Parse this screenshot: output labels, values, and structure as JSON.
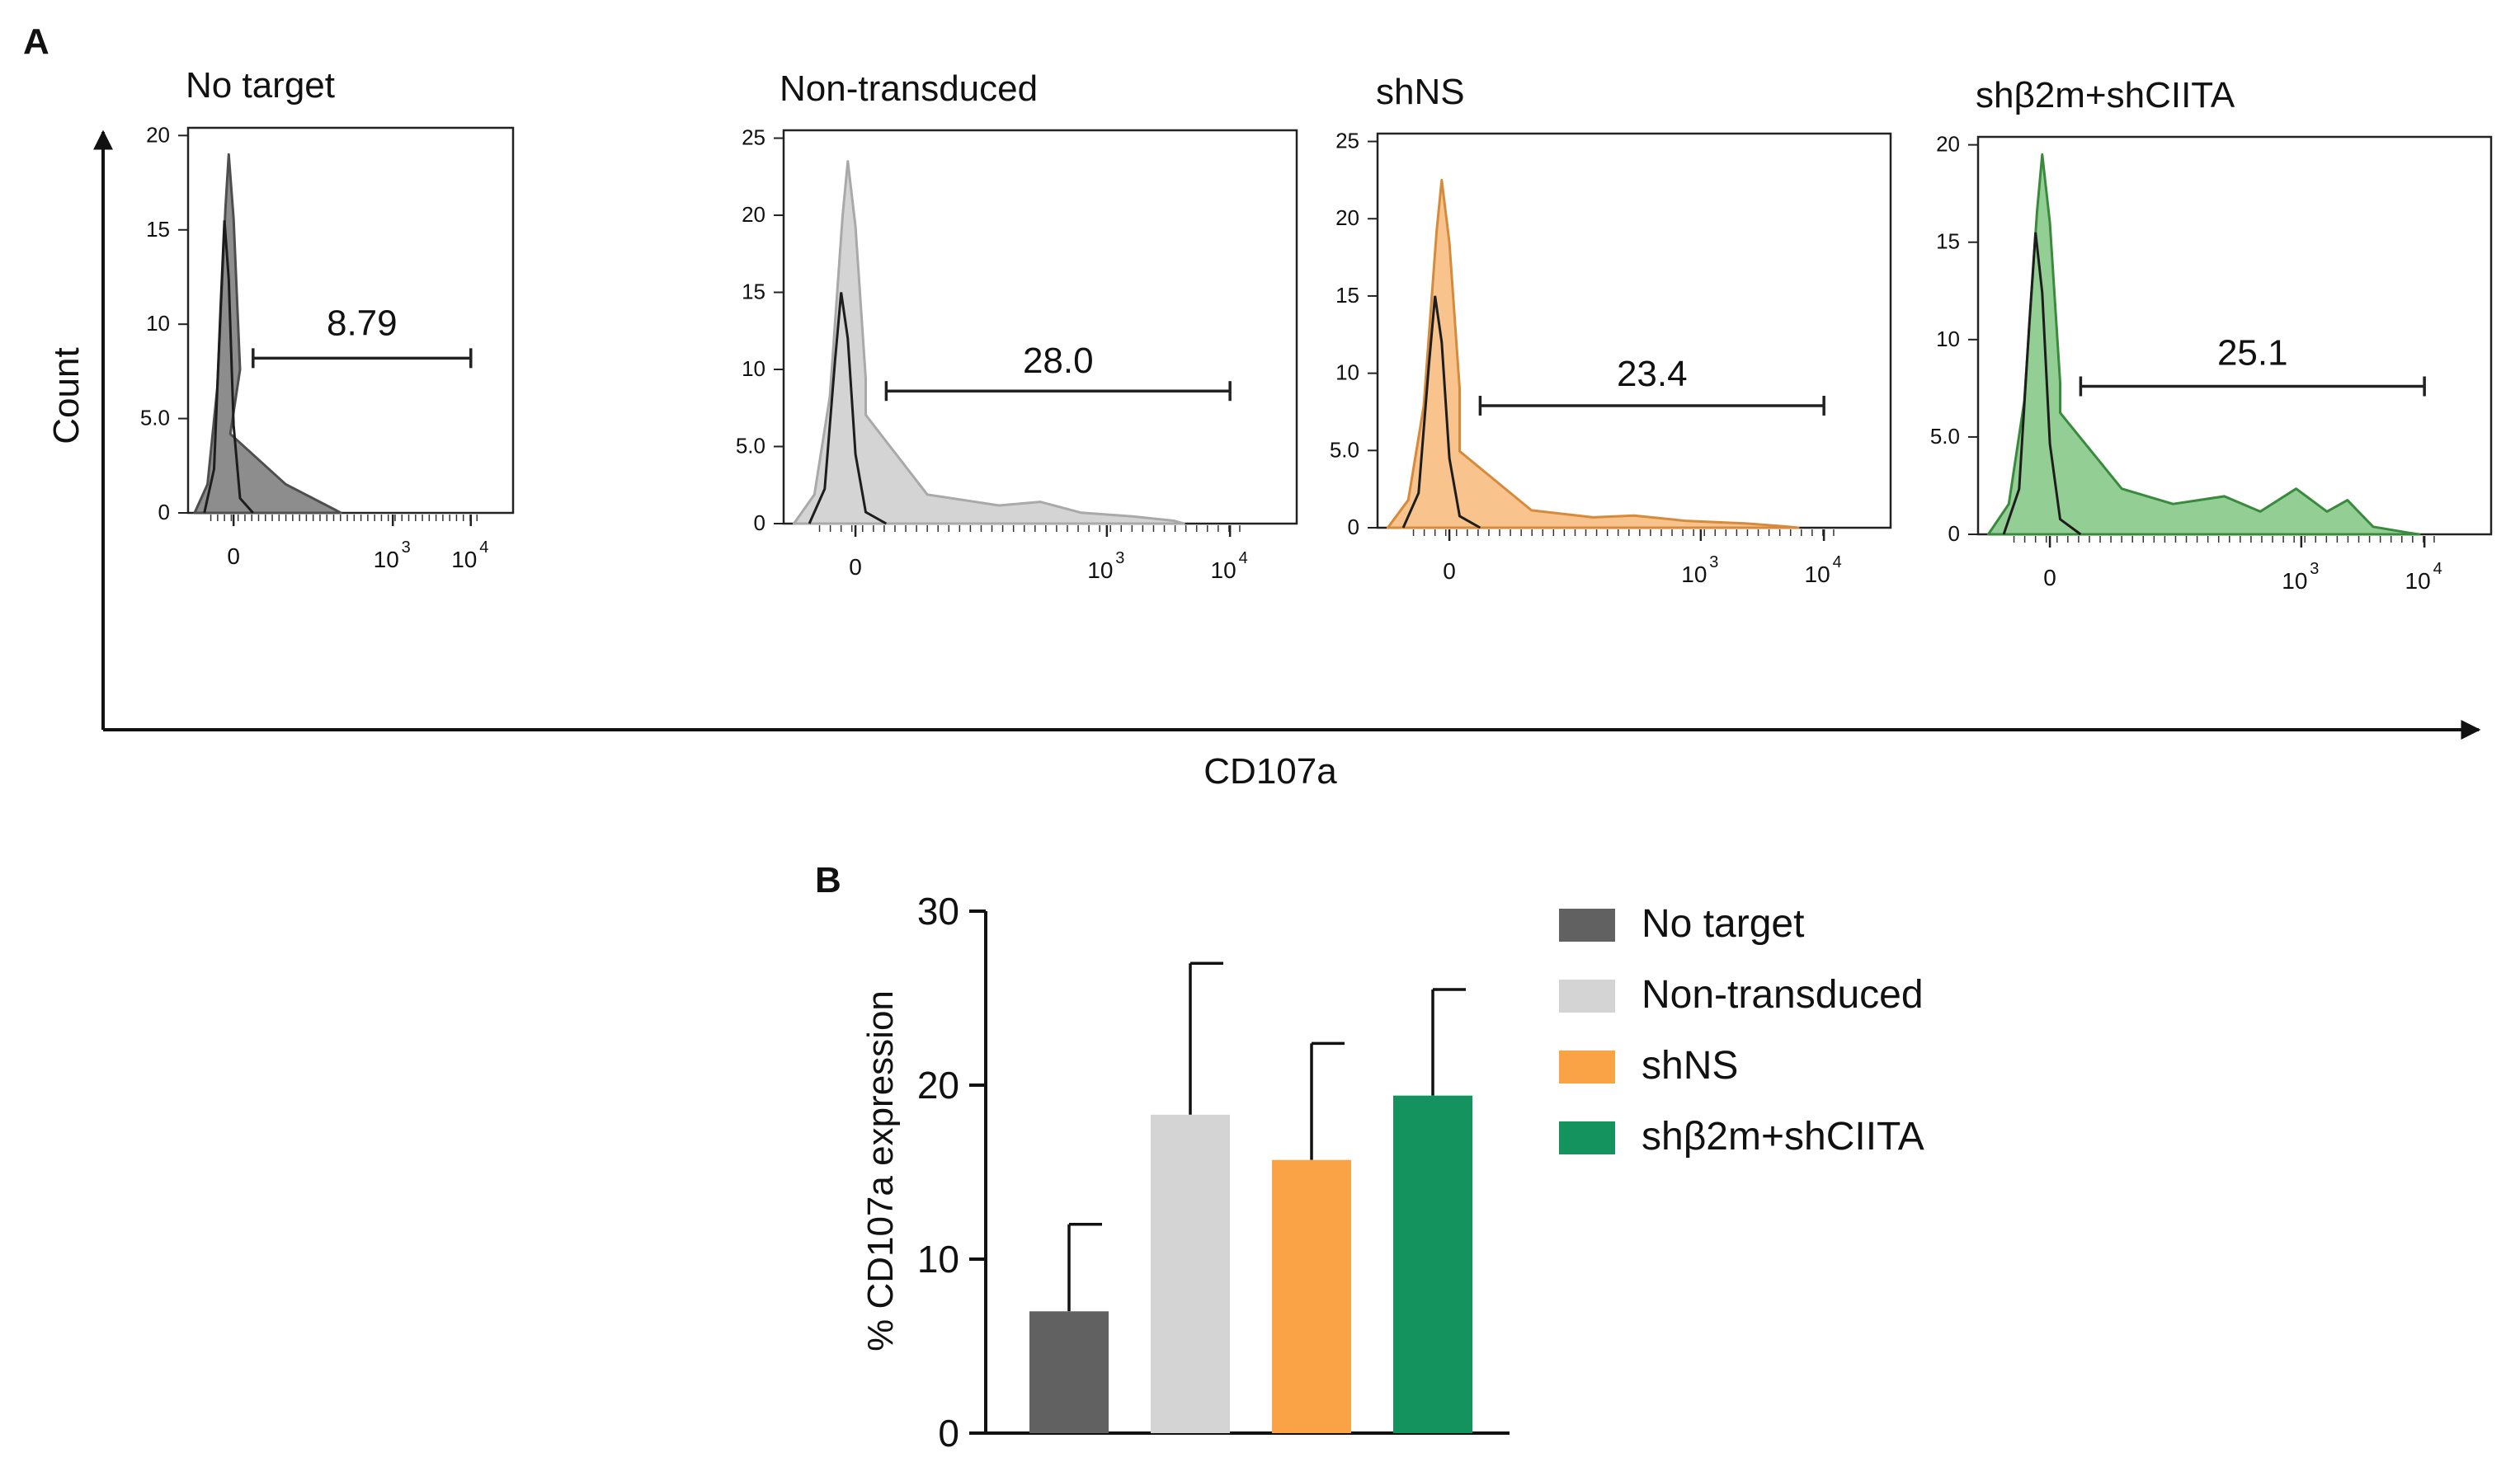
{
  "panel_labels": {
    "a": "A",
    "b": "B"
  },
  "panel_a": {
    "y_axis_label": "Count",
    "x_axis_label": "CD107a",
    "tick_labels": {
      "zero": "0",
      "ten": "10",
      "e3": "3",
      "e4": "4"
    }
  },
  "panel_b": {
    "legend": [
      "No target",
      "Non-transduced",
      "shNS",
      "shβ2m+shCIITA"
    ]
  },
  "colors": {
    "no_target": "#616161",
    "non_transduced": "#d4d4d4",
    "shns": "#f9a246",
    "shb2m": "#14935f",
    "shns_fill": "#f8c38c",
    "shb2m_fill": "#93cf94"
  },
  "chart_data": [
    {
      "type": "area",
      "title": "No target",
      "ylabel": "Count",
      "xlabel": "CD107a",
      "ylim": [
        0,
        20
      ],
      "yticks": [
        "0",
        "5.0",
        "10",
        "15",
        "20"
      ],
      "xticks": [
        "0",
        "10^3",
        "10^4"
      ],
      "peak": {
        "x": 0,
        "count": 19
      },
      "control_peak": {
        "x": 0,
        "count": 15.5
      },
      "gate_percent": "8.79",
      "gate_range": [
        "~100",
        "10^4"
      ]
    },
    {
      "type": "area",
      "title": "Non-transduced",
      "ylabel": "Count",
      "xlabel": "CD107a",
      "ylim": [
        0,
        25
      ],
      "yticks": [
        "0",
        "5.0",
        "10",
        "15",
        "20",
        "25"
      ],
      "xticks": [
        "0",
        "10^3",
        "10^4"
      ],
      "peak": {
        "x": 0,
        "count": 23.5
      },
      "control_peak": {
        "x": 0,
        "count": 15
      },
      "gate_percent": "28.0",
      "gate_range": [
        "~100",
        "10^4"
      ]
    },
    {
      "type": "area",
      "title": "shNS",
      "ylabel": "Count",
      "xlabel": "CD107a",
      "ylim": [
        0,
        25
      ],
      "yticks": [
        "0",
        "5.0",
        "10",
        "15",
        "20",
        "25"
      ],
      "xticks": [
        "0",
        "10^3",
        "10^4"
      ],
      "peak": {
        "x": 0,
        "count": 22.5
      },
      "control_peak": {
        "x": 0,
        "count": 15
      },
      "gate_percent": "23.4",
      "gate_range": [
        "~100",
        "10^4"
      ]
    },
    {
      "type": "area",
      "title": "shβ2m+shCIITA",
      "ylabel": "Count",
      "xlabel": "CD107a",
      "ylim": [
        0,
        20
      ],
      "yticks": [
        "0",
        "5.0",
        "10",
        "15",
        "20"
      ],
      "xticks": [
        "0",
        "10^3",
        "10^4"
      ],
      "peak": {
        "x": 0,
        "count": 19.5
      },
      "control_peak": {
        "x": 0,
        "count": 15.5
      },
      "gate_percent": "25.1",
      "gate_range": [
        "~100",
        "10^4"
      ]
    },
    {
      "type": "bar",
      "title": "",
      "categories": [
        "No target",
        "Non-transduced",
        "shNS",
        "shβ2m+shCIITA"
      ],
      "values": [
        7,
        18.3,
        15.7,
        19.4
      ],
      "error_upper": [
        12,
        27,
        22.4,
        25.5
      ],
      "ylabel": "% CD107a expression",
      "xlabel": "",
      "ylim": [
        0,
        30
      ],
      "yticks": [
        "0",
        "10",
        "20",
        "30"
      ],
      "legend_position": "right"
    }
  ]
}
